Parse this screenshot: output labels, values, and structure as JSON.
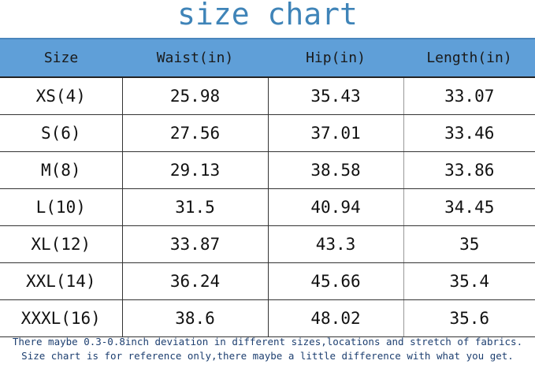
{
  "title": "size chart",
  "chart_data": {
    "type": "table",
    "title": "size chart",
    "columns": [
      "Size",
      "Waist(in)",
      "Hip(in)",
      "Length(in)"
    ],
    "rows": [
      [
        "XS(4)",
        "25.98",
        "35.43",
        "33.07"
      ],
      [
        "S(6)",
        "27.56",
        "37.01",
        "33.46"
      ],
      [
        "M(8)",
        "29.13",
        "38.58",
        "33.86"
      ],
      [
        "L(10)",
        "31.5",
        "40.94",
        "34.45"
      ],
      [
        "XL(12)",
        "33.87",
        "43.3",
        "35"
      ],
      [
        "XXL(14)",
        "36.24",
        "45.66",
        "35.4"
      ],
      [
        "XXXL(16)",
        "38.6",
        "48.02",
        "35.6"
      ]
    ],
    "header_color": "#5f9fd8",
    "title_color": "#3f84b8"
  },
  "notes": [
    "There maybe 0.3-0.8inch deviation in different sizes,locations and stretch of fabrics.",
    "Size chart is for reference only,there maybe a little difference with what you get."
  ]
}
